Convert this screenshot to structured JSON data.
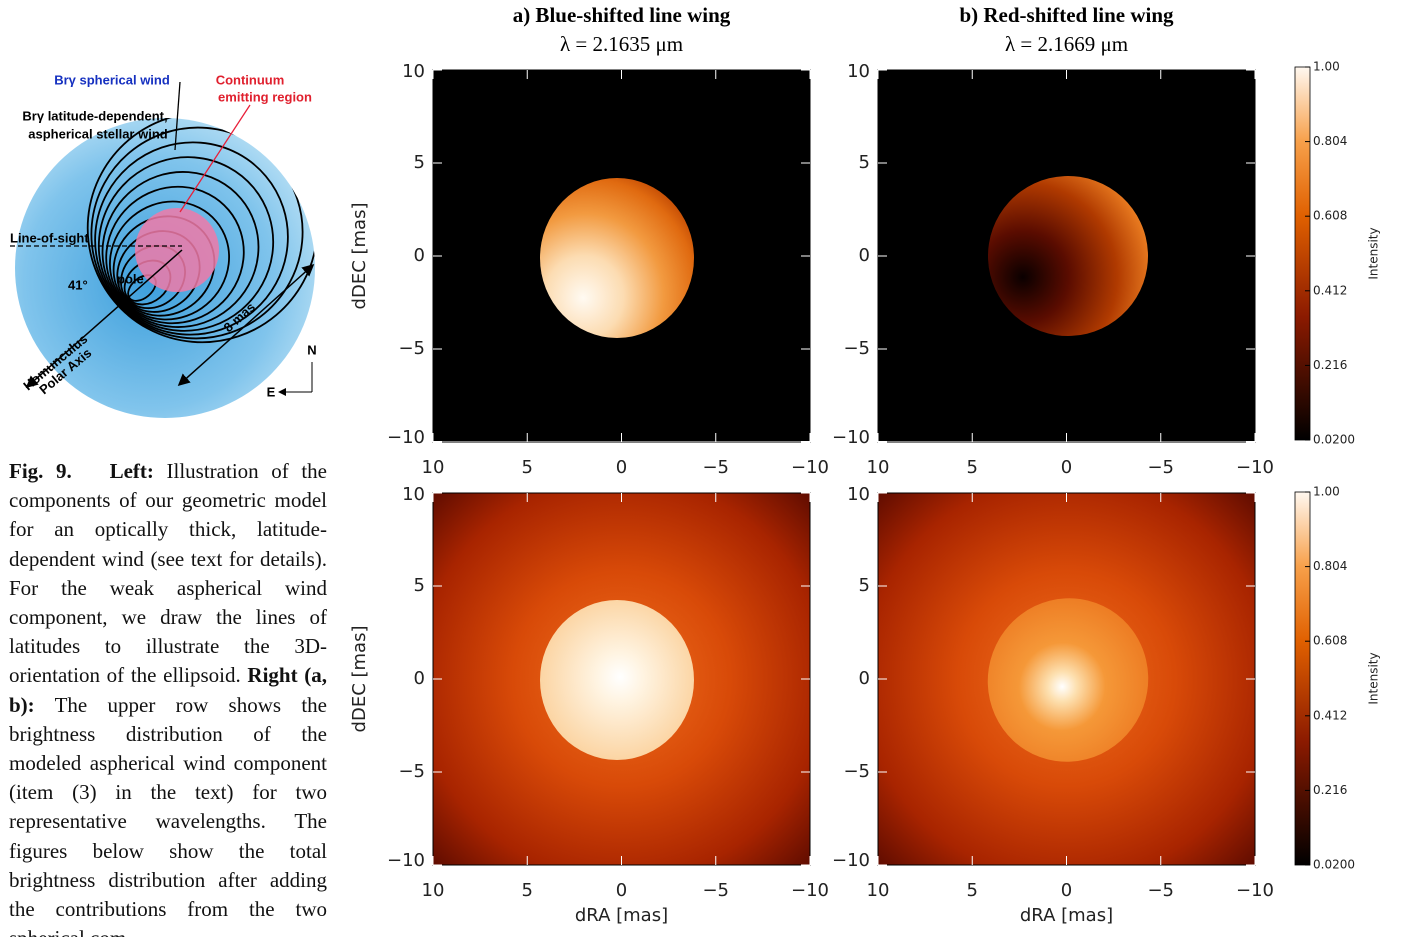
{
  "diagram": {
    "spherical_wind": "Brγ spherical wind",
    "continuum": [
      "Continuum",
      "emitting region"
    ],
    "aspherical_wind": [
      "Brγ latitude-dependent,",
      "aspherical stellar wind"
    ],
    "line_of_sight": "Line-of-sight",
    "angle": "41°",
    "pole": "pole",
    "polar_axis": [
      "Homunculus",
      "Polar Axis"
    ],
    "size": "8 mas",
    "north": "N",
    "east": "E"
  },
  "caption": {
    "label": "Fig. 9.",
    "left_label": "Left:",
    "left_text": "Illustration of the components of our geometric model for an optically thick, latitude-dependent wind (see text for details). For the weak aspherical wind component, we draw the lines of latitudes to illustrate the 3D-orientation of the ellipsoid.",
    "right_label": "Right (a, b):",
    "right_text": "The upper row shows the brightness distribution of the modeled aspherical wind component (item (3) in the text) for two representative wavelengths. The figures below show the total brightness distribution after adding the contributions from the two spherical com-"
  },
  "panels": [
    {
      "title": "a) Blue-shifted line wing",
      "subtitle": "λ = 2.1635 μm"
    },
    {
      "title": "b) Red-shifted line wing",
      "subtitle": "λ = 2.1669 μm"
    }
  ],
  "axes": {
    "xlabel": "dRA [mas]",
    "ylabel": "dDEC [mas]",
    "xlim": [
      10,
      -10
    ],
    "ylim": [
      -10,
      10
    ],
    "xticks": [
      10,
      5,
      0,
      {
        "value": -5,
        "label": "−5"
      },
      {
        "value": -10,
        "label": "−10"
      }
    ],
    "yticks": [
      {
        "value": -10,
        "label": "−10"
      },
      {
        "value": -5,
        "label": "−5"
      },
      0,
      5,
      10
    ]
  },
  "colorbar": {
    "label": "Intensity",
    "lim": [
      0.02,
      1
    ],
    "ticks": [
      {
        "value": 0.02,
        "label": "0.0200"
      },
      0.216,
      0.412,
      0.608,
      0.804,
      {
        "value": 1,
        "label": "1.00"
      }
    ]
  }
}
